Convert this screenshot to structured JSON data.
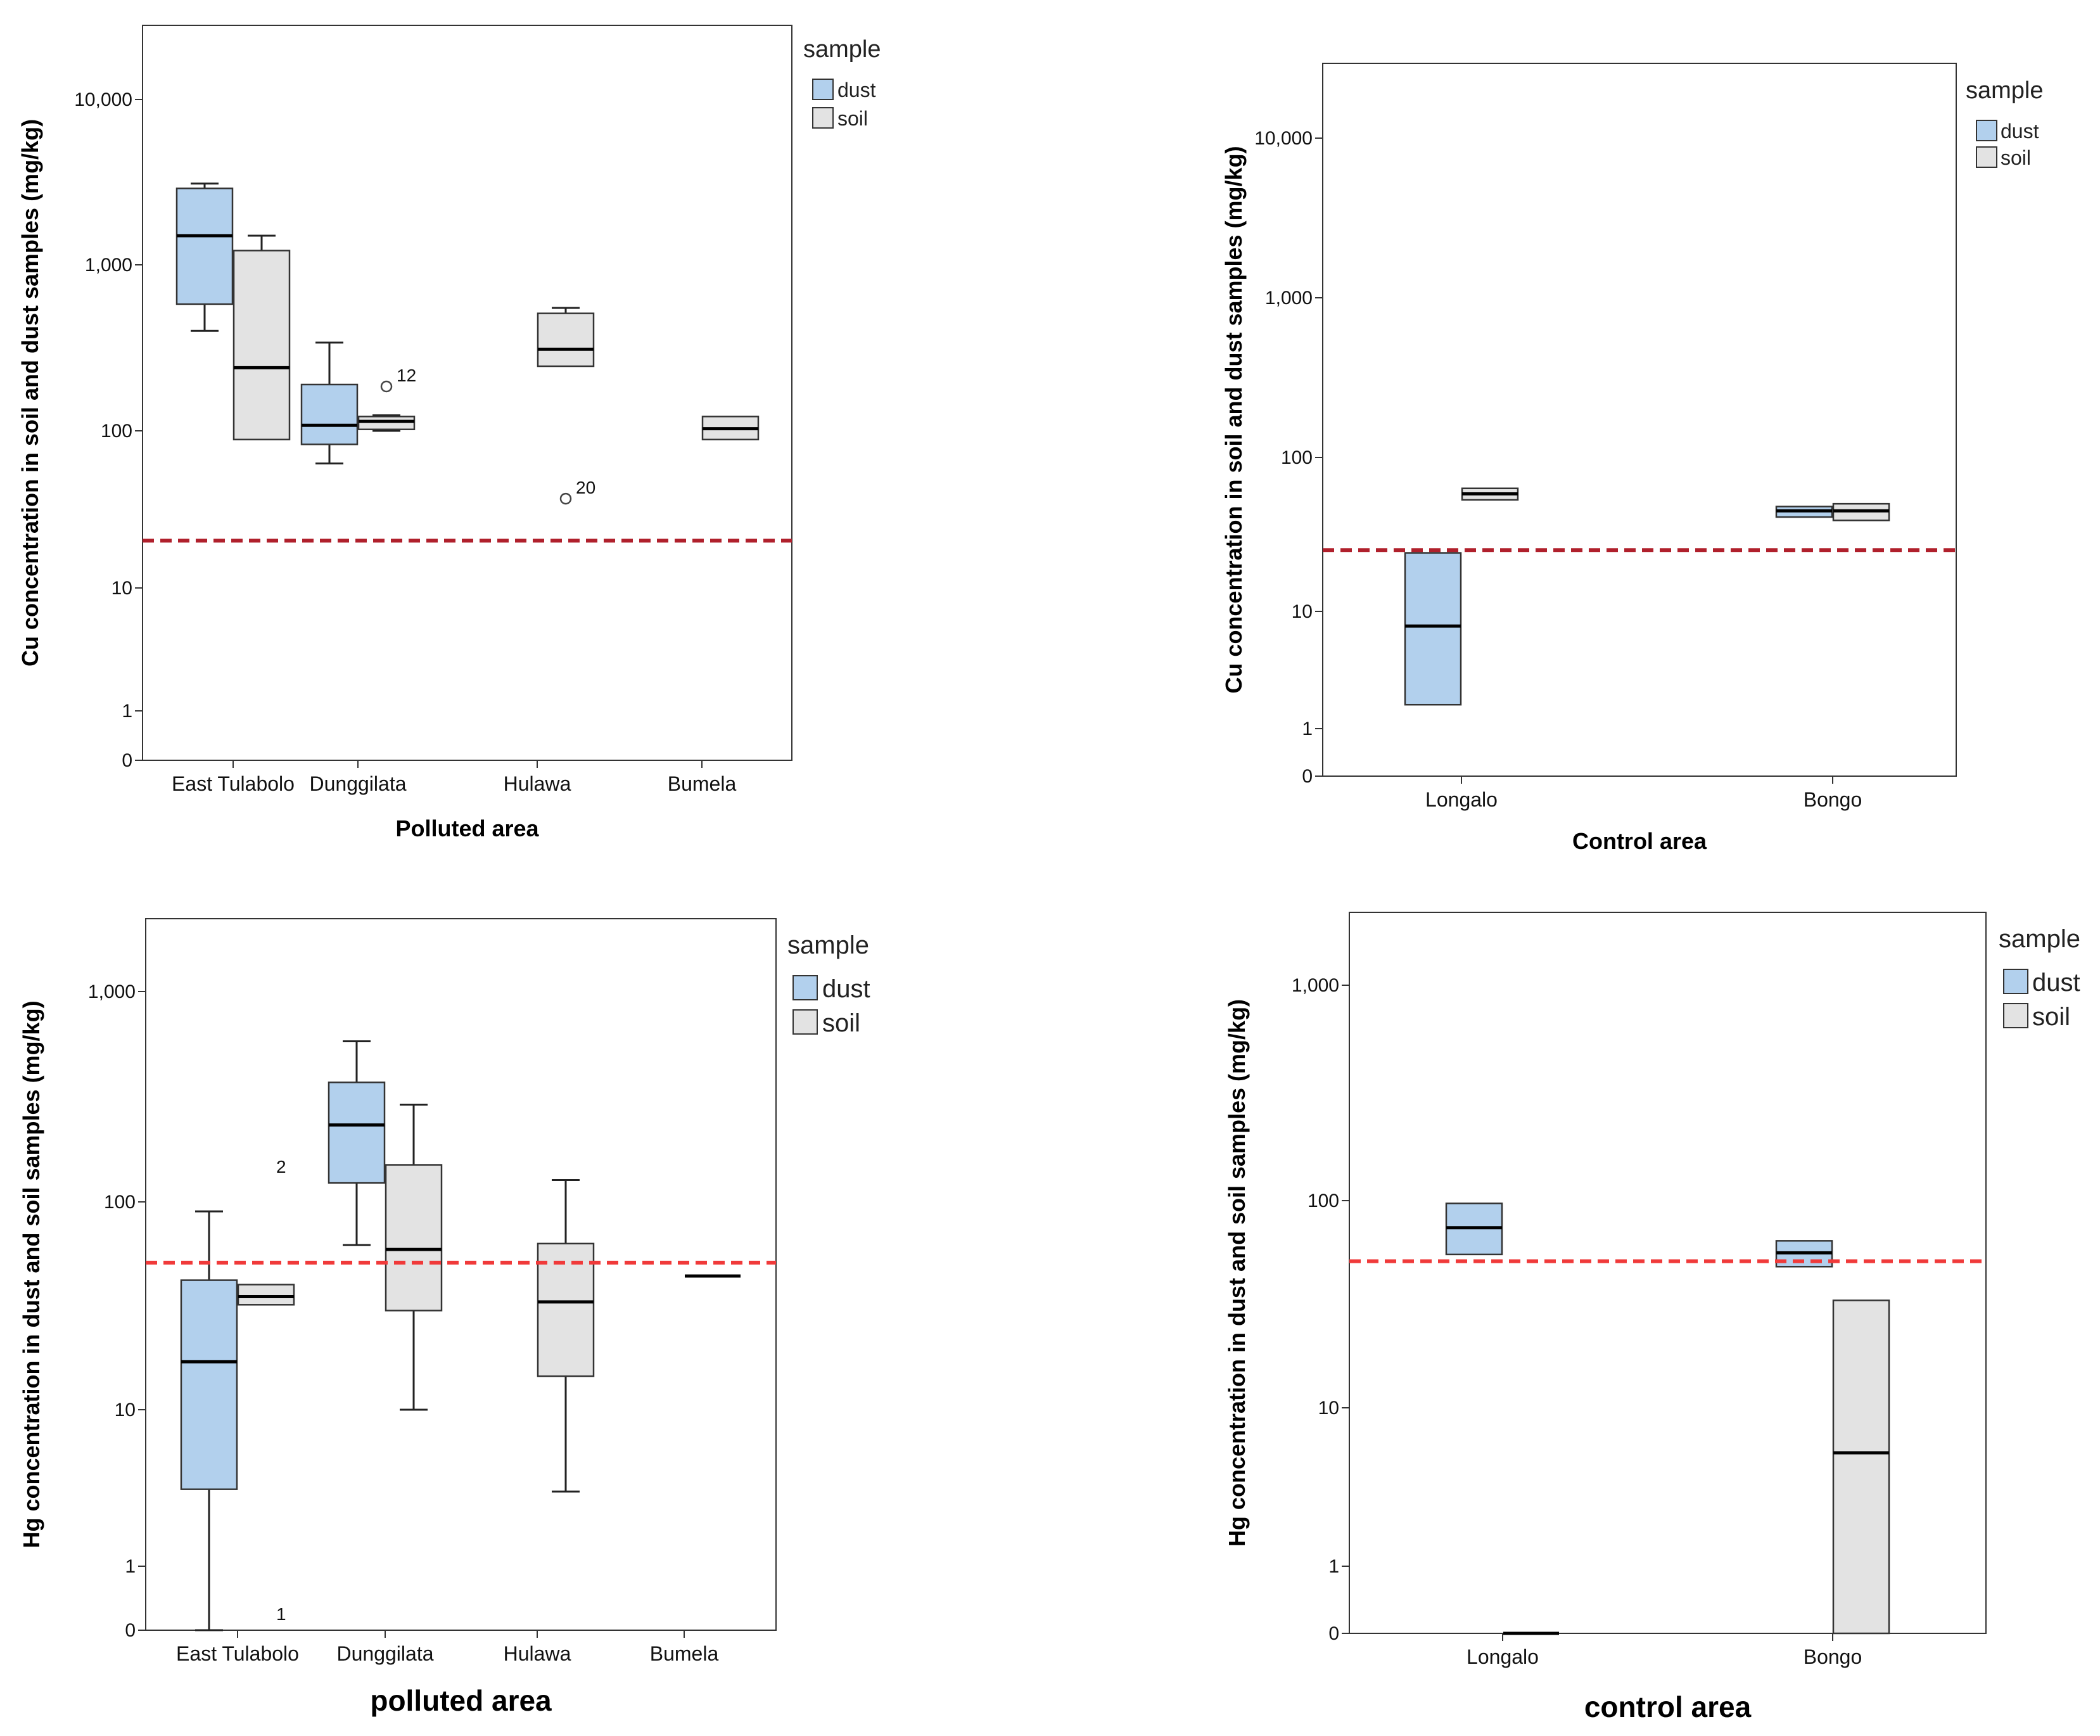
{
  "colors": {
    "dust": "#b2d0ed",
    "soil": "#e3e3e3",
    "box_stroke": "#333333",
    "reference_dark": "#b0202c",
    "reference_light": "#f03a3a"
  },
  "chart_data": [
    {
      "type": "box",
      "title": "",
      "xlabel": "Polluted area",
      "ylabel": "Cu concentration in soil and dust samples (mg/kg)",
      "yscale": "log",
      "ylim": [
        0,
        30000
      ],
      "yticks": [
        0,
        1,
        10,
        100,
        1000,
        10000
      ],
      "ytick_labels": [
        "0",
        "1",
        "10",
        "100",
        "1,000",
        "10,000"
      ],
      "categories": [
        "East Tulabolo",
        "Dunggilata",
        "Hulawa",
        "Bumela"
      ],
      "legend": {
        "title": "sample",
        "entries": [
          "dust",
          "soil"
        ],
        "position": "right"
      },
      "reference_line": 20,
      "series": [
        {
          "name": "dust",
          "boxes": [
            {
              "category": "East Tulabolo",
              "min": 400,
              "q1": 580,
              "median": 1500,
              "q3": 2900,
              "max": 3100
            },
            {
              "category": "Dunggilata",
              "min": 62,
              "q1": 82,
              "median": 108,
              "q3": 190,
              "max": 340
            },
            null,
            null
          ]
        },
        {
          "name": "soil",
          "boxes": [
            {
              "category": "East Tulabolo",
              "min": 88,
              "q1": 88,
              "median": 240,
              "q3": 1220,
              "max": 1500
            },
            {
              "category": "Dunggilata",
              "min": 100,
              "q1": 102,
              "median": 114,
              "q3": 122,
              "max": 124
            },
            {
              "category": "Hulawa",
              "min": 245,
              "q1": 245,
              "median": 310,
              "q3": 510,
              "max": 550
            },
            {
              "category": "Bumela",
              "min": 88,
              "q1": 88,
              "median": 103,
              "q3": 122,
              "max": 122
            }
          ]
        }
      ],
      "outliers": [
        {
          "category": "Dunggilata",
          "series": "soil",
          "value": 185,
          "label": "12"
        },
        {
          "category": "Hulawa",
          "series": "soil",
          "value": 37,
          "label": "20"
        }
      ]
    },
    {
      "type": "box",
      "title": "",
      "xlabel": "Control area",
      "ylabel": "Cu concentration in soil and dust samples (mg/kg)",
      "yscale": "log",
      "ylim": [
        0,
        30000
      ],
      "yticks": [
        0,
        1,
        10,
        100,
        1000,
        10000
      ],
      "ytick_labels": [
        "0",
        "1",
        "10",
        "100",
        "1,000",
        "10,000"
      ],
      "categories": [
        "Longalo",
        "Bongo"
      ],
      "legend": {
        "title": "sample",
        "entries": [
          "dust",
          "soil"
        ],
        "position": "right"
      },
      "reference_line": 25,
      "series": [
        {
          "name": "dust",
          "boxes": [
            {
              "category": "Longalo",
              "min": 1.6,
              "q1": 1.6,
              "median": 7.5,
              "q3": 24,
              "max": 24
            },
            {
              "category": "Bongo",
              "min": 41,
              "q1": 41,
              "median": 45,
              "q3": 48,
              "max": 48
            }
          ]
        },
        {
          "name": "soil",
          "boxes": [
            {
              "category": "Longalo",
              "min": 53,
              "q1": 53,
              "median": 58,
              "q3": 63,
              "max": 63
            },
            {
              "category": "Bongo",
              "min": 39,
              "q1": 39,
              "median": 45,
              "q3": 50,
              "max": 50
            }
          ]
        }
      ],
      "outliers": []
    },
    {
      "type": "box",
      "title": "",
      "xlabel": "polluted area",
      "ylabel": "Hg concentration in dust and soil samples (mg/kg)",
      "yscale": "log",
      "ylim": [
        0,
        2500
      ],
      "yticks": [
        0,
        1,
        10,
        100,
        1000
      ],
      "ytick_labels": [
        "0",
        "1",
        "10",
        "100",
        "1,000"
      ],
      "categories": [
        "East Tulabolo",
        "Dunggilata",
        "Hulawa",
        "Bumela"
      ],
      "legend": {
        "title": "sample",
        "entries": [
          "dust",
          "soil"
        ],
        "position": "right"
      },
      "reference_line": 51,
      "series": [
        {
          "name": "dust",
          "boxes": [
            {
              "category": "East Tulabolo",
              "min": 0,
              "q1": 3.1,
              "median": 17,
              "q3": 42,
              "max": 90
            },
            {
              "category": "Dunggilata",
              "min": 62,
              "q1": 123,
              "median": 232,
              "q3": 370,
              "max": 580
            },
            null,
            null
          ]
        },
        {
          "name": "soil",
          "boxes": [
            {
              "category": "East Tulabolo",
              "min": 32,
              "q1": 32,
              "median": 35,
              "q3": 40,
              "max": 40
            },
            {
              "category": "Dunggilata",
              "min": 10,
              "q1": 30,
              "median": 59,
              "q3": 150,
              "max": 290
            },
            {
              "category": "Hulawa",
              "min": 3,
              "q1": 14.5,
              "median": 33,
              "q3": 63,
              "max": 127
            },
            {
              "category": "Bumela",
              "min": 44,
              "q1": 44,
              "median": 44,
              "q3": 44,
              "max": 44
            }
          ]
        }
      ],
      "outliers": [
        {
          "category": "East Tulabolo",
          "series": "soil",
          "value": 130,
          "label": "2"
        },
        {
          "category": "East Tulabolo",
          "series": "soil",
          "value": 0.08,
          "label": "1"
        }
      ]
    },
    {
      "type": "box",
      "title": "",
      "xlabel": "control area",
      "ylabel": "Hg concentration in dust and soil samples (mg/kg)",
      "yscale": "log",
      "ylim": [
        0,
        2500
      ],
      "yticks": [
        0,
        1,
        10,
        100,
        1000
      ],
      "ytick_labels": [
        "0",
        "1",
        "10",
        "100",
        "1,000"
      ],
      "categories": [
        "Longalo",
        "Bongo"
      ],
      "legend": {
        "title": "sample",
        "entries": [
          "dust",
          "soil"
        ],
        "position": "right"
      },
      "reference_line": 51,
      "series": [
        {
          "name": "dust",
          "boxes": [
            {
              "category": "Longalo",
              "min": 55,
              "q1": 55,
              "median": 74,
              "q3": 97,
              "max": 97
            },
            {
              "category": "Bongo",
              "min": 48,
              "q1": 48,
              "median": 56,
              "q3": 64,
              "max": 64
            }
          ]
        },
        {
          "name": "soil",
          "boxes": [
            {
              "category": "Longalo",
              "min": 0,
              "q1": 0,
              "median": 0,
              "q3": 0,
              "max": 0
            },
            {
              "category": "Bongo",
              "min": 0,
              "q1": 0,
              "median": 5.2,
              "q3": 33,
              "max": 33
            }
          ]
        }
      ],
      "outliers": []
    }
  ]
}
